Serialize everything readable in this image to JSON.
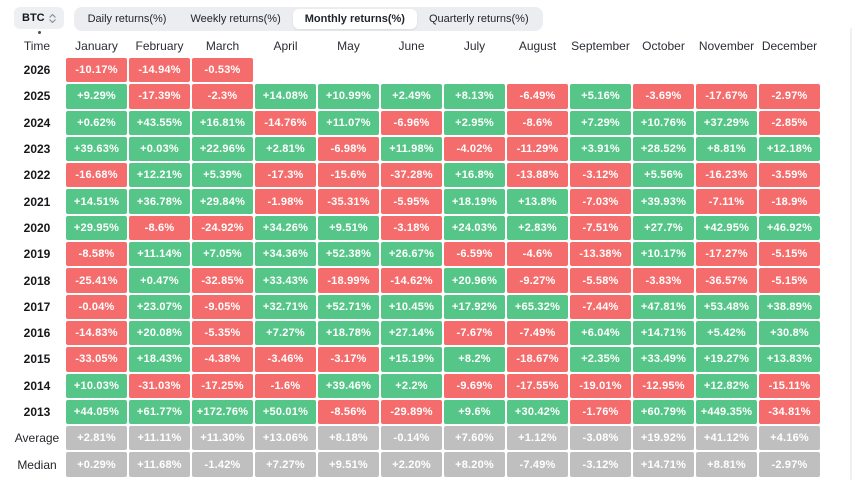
{
  "colors": {
    "positive": "#56c688",
    "negative": "#f56c6c",
    "neutral": "#bfbfbf"
  },
  "selector": {
    "label": "BTC",
    "icon": "select-up-down-arrows"
  },
  "tabs": [
    {
      "label": "Daily returns(%)",
      "active": false
    },
    {
      "label": "Weekly returns(%)",
      "active": false
    },
    {
      "label": "Monthly returns(%)",
      "active": true
    },
    {
      "label": "Quarterly returns(%)",
      "active": false
    }
  ],
  "table": {
    "time_header": "Time",
    "months": [
      "January",
      "February",
      "March",
      "April",
      "May",
      "June",
      "July",
      "August",
      "September",
      "October",
      "November",
      "December"
    ],
    "rows": [
      {
        "label": "2026",
        "type": "year",
        "cells": [
          "-10.17%",
          "-14.94%",
          "-0.53%",
          null,
          null,
          null,
          null,
          null,
          null,
          null,
          null,
          null
        ]
      },
      {
        "label": "2025",
        "type": "year",
        "cells": [
          "+9.29%",
          "-17.39%",
          "-2.3%",
          "+14.08%",
          "+10.99%",
          "+2.49%",
          "+8.13%",
          "-6.49%",
          "+5.16%",
          "-3.69%",
          "-17.67%",
          "-2.97%"
        ]
      },
      {
        "label": "2024",
        "type": "year",
        "cells": [
          "+0.62%",
          "+43.55%",
          "+16.81%",
          "-14.76%",
          "+11.07%",
          "-6.96%",
          "+2.95%",
          "-8.6%",
          "+7.29%",
          "+10.76%",
          "+37.29%",
          "-2.85%"
        ]
      },
      {
        "label": "2023",
        "type": "year",
        "cells": [
          "+39.63%",
          "+0.03%",
          "+22.96%",
          "+2.81%",
          "-6.98%",
          "+11.98%",
          "-4.02%",
          "-11.29%",
          "+3.91%",
          "+28.52%",
          "+8.81%",
          "+12.18%"
        ]
      },
      {
        "label": "2022",
        "type": "year",
        "cells": [
          "-16.68%",
          "+12.21%",
          "+5.39%",
          "-17.3%",
          "-15.6%",
          "-37.28%",
          "+16.8%",
          "-13.88%",
          "-3.12%",
          "+5.56%",
          "-16.23%",
          "-3.59%"
        ]
      },
      {
        "label": "2021",
        "type": "year",
        "cells": [
          "+14.51%",
          "+36.78%",
          "+29.84%",
          "-1.98%",
          "-35.31%",
          "-5.95%",
          "+18.19%",
          "+13.8%",
          "-7.03%",
          "+39.93%",
          "-7.11%",
          "-18.9%"
        ]
      },
      {
        "label": "2020",
        "type": "year",
        "cells": [
          "+29.95%",
          "-8.6%",
          "-24.92%",
          "+34.26%",
          "+9.51%",
          "-3.18%",
          "+24.03%",
          "+2.83%",
          "-7.51%",
          "+27.7%",
          "+42.95%",
          "+46.92%"
        ]
      },
      {
        "label": "2019",
        "type": "year",
        "cells": [
          "-8.58%",
          "+11.14%",
          "+7.05%",
          "+34.36%",
          "+52.38%",
          "+26.67%",
          "-6.59%",
          "-4.6%",
          "-13.38%",
          "+10.17%",
          "-17.27%",
          "-5.15%"
        ]
      },
      {
        "label": "2018",
        "type": "year",
        "cells": [
          "-25.41%",
          "+0.47%",
          "-32.85%",
          "+33.43%",
          "-18.99%",
          "-14.62%",
          "+20.96%",
          "-9.27%",
          "-5.58%",
          "-3.83%",
          "-36.57%",
          "-5.15%"
        ]
      },
      {
        "label": "2017",
        "type": "year",
        "cells": [
          "-0.04%",
          "+23.07%",
          "-9.05%",
          "+32.71%",
          "+52.71%",
          "+10.45%",
          "+17.92%",
          "+65.32%",
          "-7.44%",
          "+47.81%",
          "+53.48%",
          "+38.89%"
        ]
      },
      {
        "label": "2016",
        "type": "year",
        "cells": [
          "-14.83%",
          "+20.08%",
          "-5.35%",
          "+7.27%",
          "+18.78%",
          "+27.14%",
          "-7.67%",
          "-7.49%",
          "+6.04%",
          "+14.71%",
          "+5.42%",
          "+30.8%"
        ]
      },
      {
        "label": "2015",
        "type": "year",
        "cells": [
          "-33.05%",
          "+18.43%",
          "-4.38%",
          "-3.46%",
          "-3.17%",
          "+15.19%",
          "+8.2%",
          "-18.67%",
          "+2.35%",
          "+33.49%",
          "+19.27%",
          "+13.83%"
        ]
      },
      {
        "label": "2014",
        "type": "year",
        "cells": [
          "+10.03%",
          "-31.03%",
          "-17.25%",
          "-1.6%",
          "+39.46%",
          "+2.2%",
          "-9.69%",
          "-17.55%",
          "-19.01%",
          "-12.95%",
          "+12.82%",
          "-15.11%"
        ]
      },
      {
        "label": "2013",
        "type": "year",
        "cells": [
          "+44.05%",
          "+61.77%",
          "+172.76%",
          "+50.01%",
          "-8.56%",
          "-29.89%",
          "+9.6%",
          "+30.42%",
          "-1.76%",
          "+60.79%",
          "+449.35%",
          "-34.81%"
        ]
      },
      {
        "label": "Average",
        "type": "summary",
        "cells": [
          "+2.81%",
          "+11.11%",
          "+11.30%",
          "+13.06%",
          "+8.18%",
          "-0.14%",
          "+7.60%",
          "+1.12%",
          "-3.08%",
          "+19.92%",
          "+41.12%",
          "+4.16%"
        ]
      },
      {
        "label": "Median",
        "type": "summary",
        "cells": [
          "+0.29%",
          "+11.68%",
          "-1.42%",
          "+7.27%",
          "+9.51%",
          "+2.20%",
          "+8.20%",
          "-7.49%",
          "-3.12%",
          "+14.71%",
          "+8.81%",
          "-2.97%"
        ]
      }
    ]
  }
}
